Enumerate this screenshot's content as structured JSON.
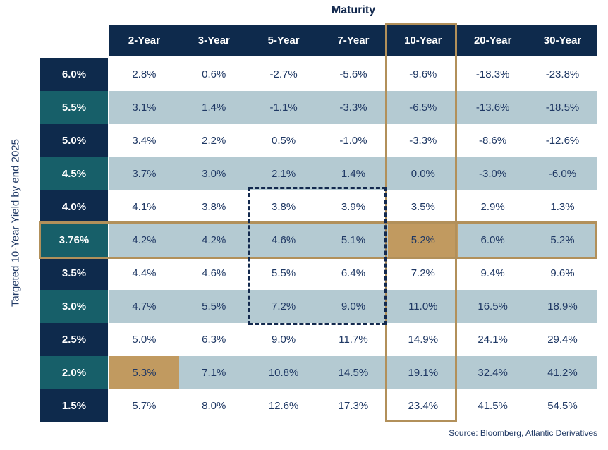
{
  "title": "Maturity",
  "y_axis_label": "Targeted 10-Year Yield by end 2025",
  "source": "Source: Bloomberg, Atlantic Derivatives",
  "colors": {
    "header_navy": "#0e2a4c",
    "row_teal": "#175f69",
    "row_light_blue": "#b4cad2",
    "highlight_gold_fill": "#c19a60",
    "highlight_gold_border": "#b2905a",
    "text_navy": "#1f3864",
    "dashed_border_navy": "#13294e"
  },
  "chart_data": {
    "type": "table",
    "title": "Maturity",
    "row_axis_label": "Targeted 10-Year Yield by end 2025",
    "columns": [
      "2-Year",
      "3-Year",
      "5-Year",
      "7-Year",
      "10-Year",
      "20-Year",
      "30-Year"
    ],
    "rows": [
      {
        "label": "6.0%",
        "values": [
          "2.8%",
          "0.6%",
          "-2.7%",
          "-5.6%",
          "-9.6%",
          "-18.3%",
          "-23.8%"
        ]
      },
      {
        "label": "5.5%",
        "values": [
          "3.1%",
          "1.4%",
          "-1.1%",
          "-3.3%",
          "-6.5%",
          "-13.6%",
          "-18.5%"
        ]
      },
      {
        "label": "5.0%",
        "values": [
          "3.4%",
          "2.2%",
          "0.5%",
          "-1.0%",
          "-3.3%",
          "-8.6%",
          "-12.6%"
        ]
      },
      {
        "label": "4.5%",
        "values": [
          "3.7%",
          "3.0%",
          "2.1%",
          "1.4%",
          "0.0%",
          "-3.0%",
          "-6.0%"
        ]
      },
      {
        "label": "4.0%",
        "values": [
          "4.1%",
          "3.8%",
          "3.8%",
          "3.9%",
          "3.5%",
          "2.9%",
          "1.3%"
        ]
      },
      {
        "label": "3.76%",
        "values": [
          "4.2%",
          "4.2%",
          "4.6%",
          "5.1%",
          "5.2%",
          "6.0%",
          "5.2%"
        ]
      },
      {
        "label": "3.5%",
        "values": [
          "4.4%",
          "4.6%",
          "5.5%",
          "6.4%",
          "7.2%",
          "9.4%",
          "9.6%"
        ]
      },
      {
        "label": "3.0%",
        "values": [
          "4.7%",
          "5.5%",
          "7.2%",
          "9.0%",
          "11.0%",
          "16.5%",
          "18.9%"
        ]
      },
      {
        "label": "2.5%",
        "values": [
          "5.0%",
          "6.3%",
          "9.0%",
          "11.7%",
          "14.9%",
          "24.1%",
          "29.4%"
        ]
      },
      {
        "label": "2.0%",
        "values": [
          "5.3%",
          "7.1%",
          "10.8%",
          "14.5%",
          "19.1%",
          "32.4%",
          "41.2%"
        ]
      },
      {
        "label": "1.5%",
        "values": [
          "5.7%",
          "8.0%",
          "12.6%",
          "17.3%",
          "23.4%",
          "41.5%",
          "54.5%"
        ]
      }
    ],
    "highlight_cells": [
      [
        5,
        4
      ],
      [
        9,
        0
      ]
    ],
    "highlighted_column": "10-Year",
    "highlighted_row": "3.76%",
    "dashed_region": {
      "columns": [
        "5-Year",
        "7-Year"
      ],
      "rows": [
        "4.0%",
        "3.76%",
        "3.5%",
        "3.0%"
      ]
    },
    "legend_position": "none",
    "grid": false
  }
}
